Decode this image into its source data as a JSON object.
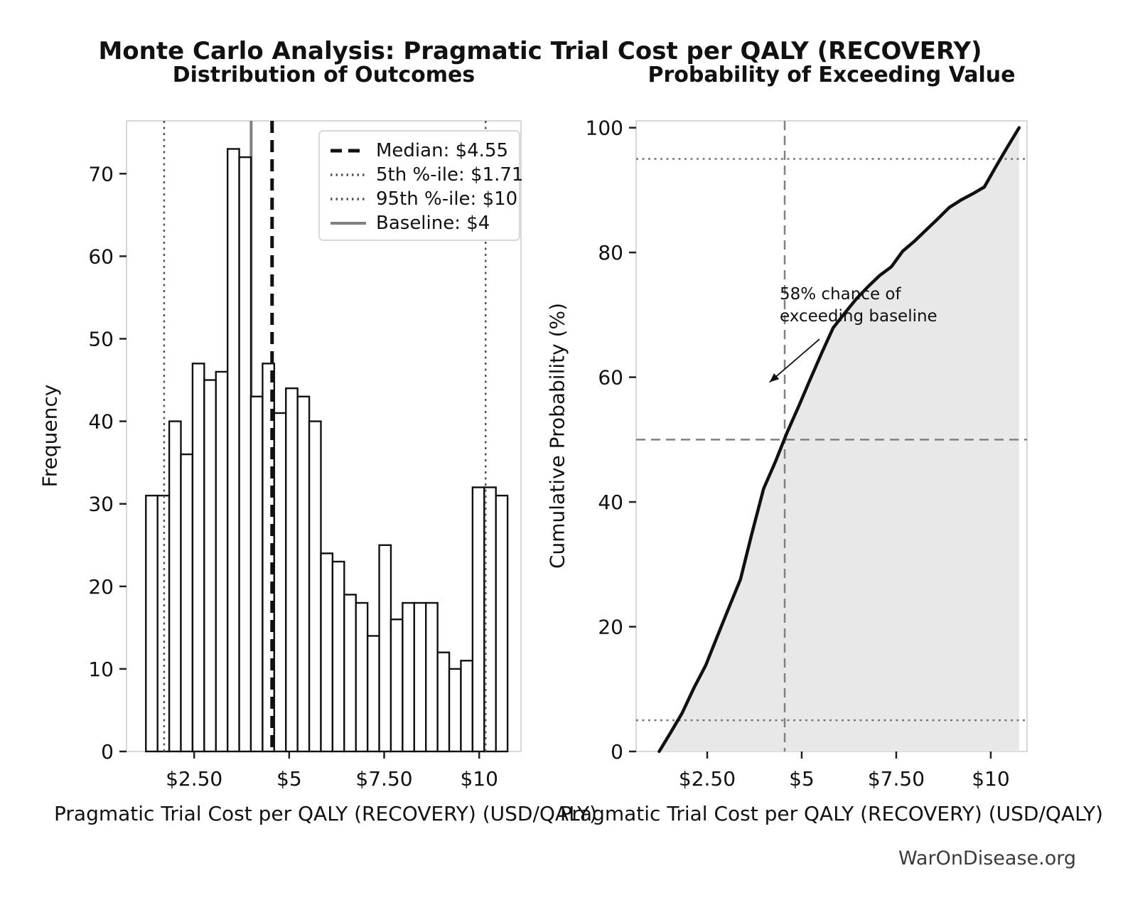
{
  "title": "Monte Carlo Analysis: Pragmatic Trial Cost per QALY (RECOVERY)",
  "watermark": "WarOnDisease.org",
  "colors": {
    "bar_fill": "#ffffff",
    "bar_edge": "#111111",
    "median_line": "#111111",
    "percentile_line": "#555555",
    "baseline_line": "#808080",
    "crosshair_dashed": "#808080",
    "dotted_line": "#777777",
    "curve": "#111111",
    "cdf_fill": "#e8e8e8",
    "spine": "#cccccc",
    "tick": "#222222",
    "watermark_text": "#3b3b3b"
  },
  "chart_data": [
    {
      "type": "bar",
      "title": "Distribution of Outcomes",
      "xlabel": "Pragmatic Trial Cost per QALY (RECOVERY) (USD/QALY)",
      "ylabel": "Frequency",
      "n_samples": 1000,
      "bin_start": 1.23,
      "bin_width": 0.307,
      "bin_end": 10.75,
      "values": [
        31,
        31,
        40,
        36,
        47,
        45,
        46,
        73,
        72,
        43,
        47,
        41,
        44,
        43,
        40,
        24,
        23,
        19,
        18,
        14,
        25,
        16,
        18,
        18,
        18,
        12,
        10,
        11,
        32,
        32,
        31
      ],
      "xlim": [
        0.72,
        11.1
      ],
      "ylim": [
        0,
        76.4
      ],
      "xticks": [
        {
          "v": 2.5,
          "label": "$2.50"
        },
        {
          "v": 5.0,
          "label": "$5"
        },
        {
          "v": 7.5,
          "label": "$7.50"
        },
        {
          "v": 10.0,
          "label": "$10"
        }
      ],
      "yticks": [
        0,
        10,
        20,
        30,
        40,
        50,
        60,
        70
      ],
      "vlines": [
        {
          "name": "baseline",
          "value": 4.0,
          "style": "solid",
          "behind_bars": true
        },
        {
          "name": "median",
          "value": 4.55,
          "style": "dashed",
          "behind_bars": false
        },
        {
          "name": "p5",
          "value": 1.71,
          "style": "dotted",
          "behind_bars": false
        },
        {
          "name": "p95",
          "value": 10.17,
          "style": "dotted",
          "behind_bars": false
        }
      ],
      "legend": [
        {
          "label": "Median: $4.55",
          "line": "dashed-black"
        },
        {
          "label": "5th %-ile: $1.71",
          "line": "dotted-gray"
        },
        {
          "label": "95th %-ile: $10",
          "line": "dotted-gray"
        },
        {
          "label": "Baseline: $4",
          "line": "solid-gray"
        }
      ]
    },
    {
      "type": "line",
      "title": "Probability of Exceeding Value",
      "xlabel": "Pragmatic Trial Cost per QALY (RECOVERY) (USD/QALY)",
      "ylabel": "Cumulative Probability (%)",
      "xlim": [
        0.62,
        10.96
      ],
      "ylim": [
        0,
        101.1
      ],
      "xticks": [
        {
          "v": 2.5,
          "label": "$2.50"
        },
        {
          "v": 5.0,
          "label": "$5"
        },
        {
          "v": 7.5,
          "label": "$7.50"
        },
        {
          "v": 10.0,
          "label": "$10"
        }
      ],
      "yticks": [
        0,
        20,
        40,
        60,
        80,
        100
      ],
      "points": [
        [
          1.23,
          0
        ],
        [
          1.54,
          3.1
        ],
        [
          1.84,
          6.2
        ],
        [
          2.15,
          10.2
        ],
        [
          2.46,
          13.8
        ],
        [
          2.77,
          18.5
        ],
        [
          3.07,
          23.0
        ],
        [
          3.38,
          27.6
        ],
        [
          3.68,
          34.9
        ],
        [
          3.99,
          42.1
        ],
        [
          4.3,
          46.4
        ],
        [
          4.61,
          51.1
        ],
        [
          4.91,
          55.2
        ],
        [
          5.22,
          59.6
        ],
        [
          5.53,
          63.9
        ],
        [
          5.83,
          67.9
        ],
        [
          6.14,
          70.3
        ],
        [
          6.45,
          72.6
        ],
        [
          6.75,
          74.5
        ],
        [
          7.06,
          76.3
        ],
        [
          7.37,
          77.7
        ],
        [
          7.67,
          80.2
        ],
        [
          7.98,
          81.8
        ],
        [
          8.29,
          83.6
        ],
        [
          8.6,
          85.4
        ],
        [
          8.9,
          87.2
        ],
        [
          9.21,
          88.4
        ],
        [
          9.52,
          89.4
        ],
        [
          9.83,
          90.5
        ],
        [
          10.13,
          93.7
        ],
        [
          10.44,
          96.9
        ],
        [
          10.75,
          100
        ]
      ],
      "hlines": [
        {
          "name": "p5-line",
          "value": 5,
          "style": "dotted"
        },
        {
          "name": "median-line",
          "value": 50,
          "style": "dashed"
        },
        {
          "name": "p95-line",
          "value": 95,
          "style": "dotted"
        }
      ],
      "vlines": [
        {
          "name": "median-line",
          "value": 4.55,
          "style": "dashed"
        }
      ],
      "annotation": {
        "line1": "58% chance of",
        "line2": "exceeding baseline",
        "text_x": 4.42,
        "text_y": 73.4,
        "arrow_from": [
          5.47,
          66.1
        ],
        "arrow_to": [
          4.15,
          59.2
        ]
      }
    }
  ]
}
